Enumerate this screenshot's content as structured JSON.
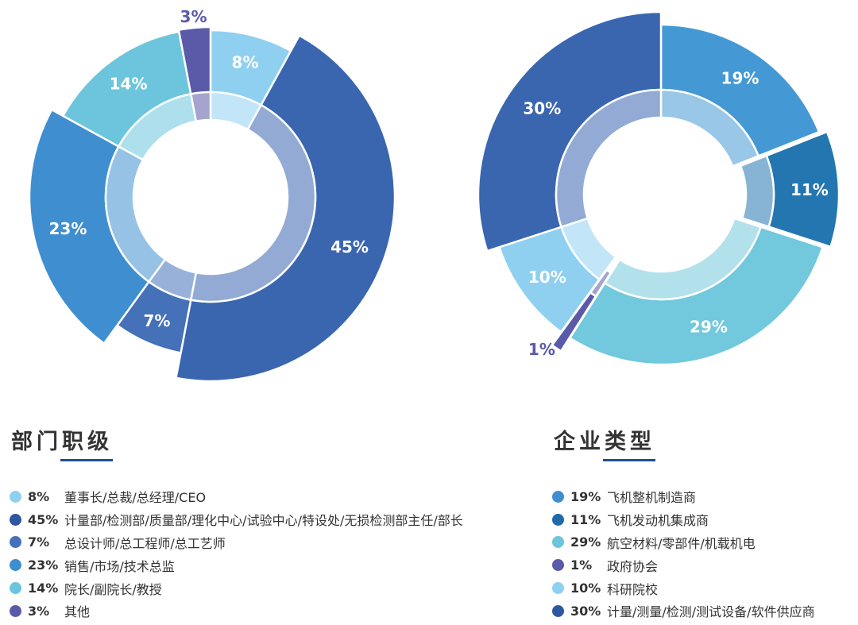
{
  "chart_data": [
    {
      "type": "pie",
      "title": "部门职级",
      "categories": [
        "董事长/总裁/总经理/CEO",
        "计量部/检测部/质量部/理化中心/试验中心/特设处/无损检测部主任/部长",
        "总设计师/总工程师/总工艺师",
        "销售/市场/技术总监",
        "院长/副院长/教授",
        "其他"
      ],
      "values": [
        8,
        45,
        7,
        23,
        14,
        3
      ],
      "labels": [
        "8%",
        "45%",
        "7%",
        "23%",
        "14%",
        "3%"
      ],
      "colors": [
        "#8fd0f1",
        "#3a66b0",
        "#4471b8",
        "#3f8fd0",
        "#6cc5dc",
        "#5a5aa8"
      ],
      "label_colors": [
        "#ffffff",
        "#ffffff",
        "#ffffff",
        "#ffffff",
        "#ffffff",
        "#5a5aa8"
      ],
      "legend": "bottom"
    },
    {
      "type": "pie",
      "title": "企业类型",
      "categories": [
        "飞机整机制造商",
        "飞机发动机集成商",
        "航空材料/零部件/机载机电",
        "政府协会",
        "科研院校",
        "计量/测量/检测/测试设备/软件供应商"
      ],
      "values": [
        19,
        11,
        29,
        1,
        10,
        30
      ],
      "labels": [
        "19%",
        "11%",
        "29%",
        "1%",
        "10%",
        "30%"
      ],
      "colors": [
        "#4499d4",
        "#2476b0",
        "#72c8dc",
        "#5a5aa8",
        "#8fd0f1",
        "#3a66b0"
      ],
      "label_colors": [
        "#ffffff",
        "#ffffff",
        "#ffffff",
        "#5a5aa8",
        "#ffffff",
        "#ffffff"
      ],
      "legend": "bottom"
    }
  ],
  "sections": [
    {
      "title": "部门职级",
      "accent": "#1e4e8f",
      "items": [
        {
          "pct": "8%",
          "label": "董事长/总裁/总经理/CEO",
          "color": "#8fd0f1"
        },
        {
          "pct": "45%",
          "label": "计量部/检测部/质量部/理化中心/试验中心/特设处/无损检测部主任/部长",
          "color": "#2e57a0"
        },
        {
          "pct": "7%",
          "label": "总设计师/总工程师/总工艺师",
          "color": "#4471b8"
        },
        {
          "pct": "23%",
          "label": "销售/市场/技术总监",
          "color": "#3f8fd0"
        },
        {
          "pct": "14%",
          "label": "院长/副院长/教授",
          "color": "#6cc5dc"
        },
        {
          "pct": "3%",
          "label": "其他",
          "color": "#5a5aa8"
        }
      ]
    },
    {
      "title": "企业类型",
      "accent": "#1e4e8f",
      "items": [
        {
          "pct": "19%",
          "label": "飞机整机制造商",
          "color": "#3f8fd0"
        },
        {
          "pct": "11%",
          "label": "飞机发动机集成商",
          "color": "#1f6aa8"
        },
        {
          "pct": "29%",
          "label": "航空材料/零部件/机载机电",
          "color": "#6cc5dc"
        },
        {
          "pct": "1%",
          "label": "政府协会",
          "color": "#5a5aa8"
        },
        {
          "pct": "10%",
          "label": "科研院校",
          "color": "#8fd0f1"
        },
        {
          "pct": "30%",
          "label": "计量/测量/检测/测试设备/软件供应商",
          "color": "#2e57a0"
        }
      ]
    }
  ]
}
